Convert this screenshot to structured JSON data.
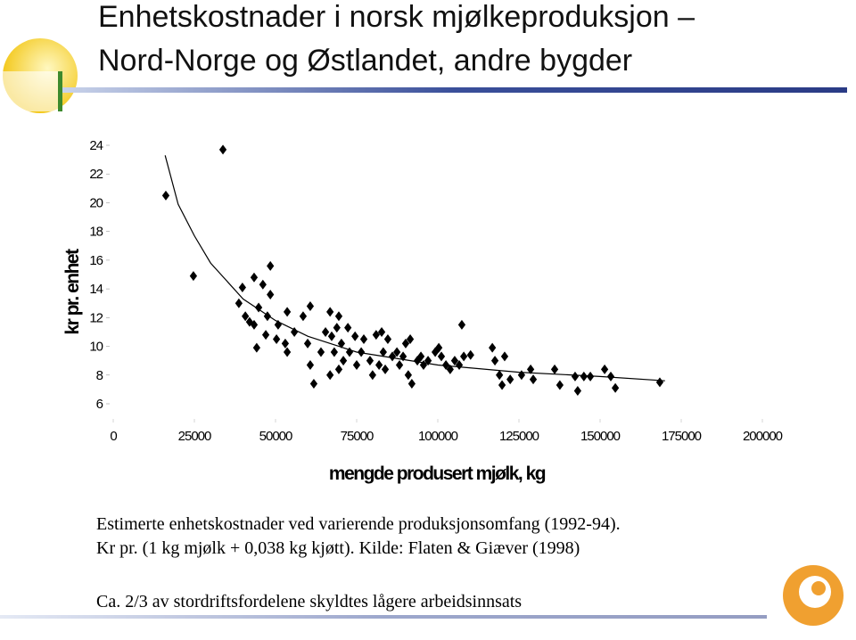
{
  "slide": {
    "title_lines": [
      "Enhetskostnader i norsk mjølkeproduksjon –",
      "Nord-Norge og Østlandet, andre bygder"
    ],
    "caption_lines": [
      "Estimerte enhetskostnader ved varierende produksjonsomfang (1992-94).",
      "Kr pr. (1 kg mjølk + 0,038 kg kjøtt). Kilde: Flaten & Giæver (1998)"
    ],
    "note": "Ca. 2/3 av stordriftsfordelene skyldtes lågere arbeidsinnsats"
  },
  "chart_data": {
    "type": "scatter",
    "x_label": "mengde produsert mjølk, kg",
    "y_label": "kr pr. enhet",
    "xlim": [
      0,
      200000
    ],
    "ylim": [
      6,
      24
    ],
    "xticks": [
      0,
      25000,
      50000,
      75000,
      100000,
      125000,
      150000,
      175000,
      200000
    ],
    "yticks": [
      6,
      8,
      10,
      12,
      14,
      16,
      18,
      20,
      22,
      24
    ],
    "series": [
      {
        "color": "#000000",
        "marker": "diamond",
        "x": [
          16200,
          33800,
          24700,
          39800,
          38700,
          43400,
          48400,
          46100,
          48400,
          40700,
          42000,
          44800,
          43400,
          44200,
          47000,
          47500,
          50800,
          50300,
          53600,
          53000,
          53600,
          55800,
          58500,
          60700,
          59900,
          60700,
          61800,
          64000,
          65400,
          66800,
          67300,
          68900,
          69500,
          68100,
          70300,
          70900,
          72300,
          72800,
          74500,
          75000,
          76400,
          77200,
          66800,
          69500,
          79100,
          79900,
          81000,
          81900,
          82700,
          83200,
          83800,
          84600,
          86000,
          87400,
          88200,
          89300,
          90100,
          90900,
          91500,
          92000,
          93700,
          94800,
          95600,
          97000,
          99200,
          100300,
          101100,
          102500,
          103800,
          105200,
          106600,
          107400,
          108000,
          110100,
          116800,
          117600,
          119000,
          119800,
          120600,
          122300,
          125800,
          128600,
          129400,
          136000,
          137600,
          142300,
          143100,
          145000,
          147000,
          151400,
          153300,
          154700,
          168400
        ],
        "values": [
          20.5,
          23.7,
          14.9,
          14.1,
          13.0,
          14.8,
          15.6,
          14.3,
          13.6,
          12.1,
          11.7,
          12.7,
          11.5,
          9.9,
          10.8,
          12.1,
          11.5,
          10.5,
          12.4,
          10.2,
          9.6,
          11.0,
          12.1,
          12.8,
          10.2,
          8.7,
          7.4,
          9.6,
          11.0,
          12.4,
          10.7,
          11.3,
          12.1,
          9.6,
          10.2,
          9.0,
          11.3,
          9.6,
          10.7,
          8.7,
          9.6,
          10.5,
          8.0,
          8.4,
          9.0,
          8.0,
          10.8,
          8.7,
          11.0,
          9.6,
          8.4,
          10.5,
          9.3,
          9.6,
          8.7,
          9.3,
          10.2,
          8.0,
          10.5,
          7.4,
          9.0,
          9.3,
          8.7,
          9.0,
          9.6,
          9.9,
          9.3,
          8.7,
          8.4,
          9.0,
          8.7,
          11.5,
          9.3,
          9.4,
          9.9,
          9.0,
          8.0,
          7.3,
          9.3,
          7.7,
          8.0,
          8.4,
          7.7,
          8.4,
          7.3,
          7.9,
          6.9,
          7.9,
          7.9,
          8.4,
          7.9,
          7.1,
          7.5
        ]
      },
      {
        "color": "#000000",
        "marker": "line",
        "x": [
          16000,
          20000,
          25000,
          30000,
          40000,
          50000,
          60000,
          75000,
          100000,
          125000,
          150000,
          170000
        ],
        "values": [
          23.3,
          19.9,
          17.7,
          15.8,
          13.3,
          11.8,
          10.7,
          9.6,
          8.7,
          8.2,
          7.9,
          7.6
        ]
      }
    ]
  }
}
